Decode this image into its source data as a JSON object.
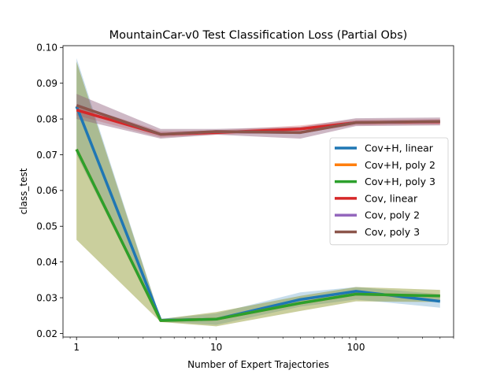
{
  "chart_data": {
    "type": "line",
    "title": "MountainCar-v0 Test Classification Loss (Partial Obs)",
    "xlabel": "Number of Expert Trajectories",
    "ylabel": "class_test",
    "xscale": "log",
    "xlim": [
      0.8,
      500
    ],
    "ylim": [
      0.019,
      0.1005
    ],
    "xticks": [
      {
        "value": 1,
        "label": "1"
      },
      {
        "value": 10,
        "label": "10"
      },
      {
        "value": 100,
        "label": "100"
      }
    ],
    "yticks": [
      {
        "value": 0.02,
        "label": "0.02"
      },
      {
        "value": 0.03,
        "label": "0.03"
      },
      {
        "value": 0.04,
        "label": "0.04"
      },
      {
        "value": 0.05,
        "label": "0.05"
      },
      {
        "value": 0.06,
        "label": "0.06"
      },
      {
        "value": 0.07,
        "label": "0.07"
      },
      {
        "value": 0.08,
        "label": "0.08"
      },
      {
        "value": 0.09,
        "label": "0.09"
      },
      {
        "value": 0.1,
        "label": "0.10"
      }
    ],
    "grid": false,
    "legend_position": "center-right",
    "x": [
      1,
      4,
      10,
      40,
      100,
      400
    ],
    "series": [
      {
        "name": "Cov+H, linear",
        "color": "#1f77b4",
        "values": [
          0.0835,
          0.0237,
          0.024,
          0.0295,
          0.0318,
          0.029
        ],
        "lower": [
          0.07,
          0.0233,
          0.0224,
          0.0275,
          0.0295,
          0.0272
        ],
        "upper": [
          0.097,
          0.0241,
          0.0256,
          0.0315,
          0.033,
          0.031
        ]
      },
      {
        "name": "Cov+H, poly 2",
        "color": "#ff7f0e",
        "values": [
          0.0715,
          0.0236,
          0.024,
          0.0285,
          0.031,
          0.0305
        ],
        "lower": [
          0.0462,
          0.0232,
          0.022,
          0.0263,
          0.029,
          0.0288
        ],
        "upper": [
          0.096,
          0.024,
          0.026,
          0.0305,
          0.033,
          0.0322
        ]
      },
      {
        "name": "Cov+H, poly 3",
        "color": "#2ca02c",
        "values": [
          0.0715,
          0.0236,
          0.024,
          0.0285,
          0.031,
          0.0305
        ],
        "lower": [
          0.0462,
          0.0232,
          0.022,
          0.0263,
          0.029,
          0.0288
        ],
        "upper": [
          0.096,
          0.024,
          0.026,
          0.0305,
          0.033,
          0.0322
        ]
      },
      {
        "name": "Cov, linear",
        "color": "#d62728",
        "values": [
          0.0825,
          0.0757,
          0.0762,
          0.0772,
          0.079,
          0.0792
        ],
        "lower": [
          0.081,
          0.0748,
          0.0756,
          0.0762,
          0.0782,
          0.0784
        ],
        "upper": [
          0.084,
          0.0766,
          0.0768,
          0.0782,
          0.0798,
          0.08
        ]
      },
      {
        "name": "Cov, poly 2",
        "color": "#9467bd",
        "values": [
          0.0838,
          0.0757,
          0.0765,
          0.0762,
          0.079,
          0.0793
        ],
        "lower": [
          0.08,
          0.0745,
          0.0756,
          0.0745,
          0.078,
          0.0782
        ],
        "upper": [
          0.087,
          0.0772,
          0.0772,
          0.0778,
          0.0802,
          0.0804
        ]
      },
      {
        "name": "Cov, poly 3",
        "color": "#8c564b",
        "values": [
          0.0838,
          0.0757,
          0.0765,
          0.0762,
          0.079,
          0.0793
        ],
        "lower": [
          0.08,
          0.0745,
          0.0756,
          0.0745,
          0.078,
          0.0782
        ],
        "upper": [
          0.087,
          0.0772,
          0.0772,
          0.0778,
          0.0802,
          0.0804
        ]
      }
    ]
  }
}
